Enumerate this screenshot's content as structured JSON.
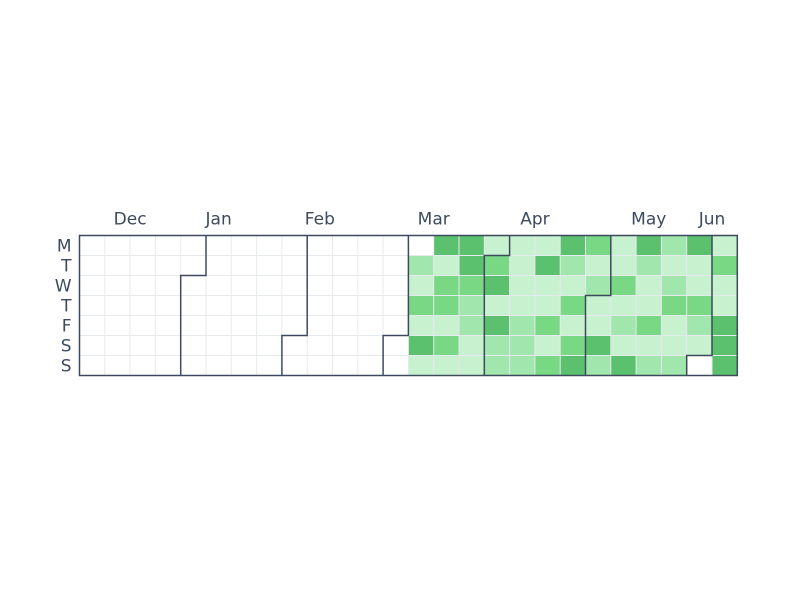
{
  "chart_data": {
    "type": "heatmap",
    "title": "",
    "xlabel": "",
    "ylabel": "",
    "day_labels": [
      "M",
      "T",
      "W",
      "T",
      "F",
      "S",
      "S"
    ],
    "months": [
      {
        "label": "Dec",
        "week_span": [
          0,
          4
        ]
      },
      {
        "label": "Jan",
        "week_span": [
          3,
          8
        ]
      },
      {
        "label": "Feb",
        "week_span": [
          7,
          12
        ]
      },
      {
        "label": "Mar",
        "week_span": [
          12,
          16
        ]
      },
      {
        "label": "Apr",
        "week_span": [
          16,
          20
        ]
      },
      {
        "label": "May",
        "week_span": [
          20,
          25
        ]
      },
      {
        "label": "Jun",
        "week_span": [
          24,
          26
        ]
      }
    ],
    "levels": [
      [
        0,
        0,
        0,
        0,
        0,
        0,
        0,
        0,
        0,
        0,
        0,
        0,
        0,
        0,
        4,
        4,
        1,
        1,
        1,
        4,
        3,
        1,
        4,
        2,
        4,
        1
      ],
      [
        0,
        0,
        0,
        0,
        0,
        0,
        0,
        0,
        0,
        0,
        0,
        0,
        0,
        2,
        1,
        4,
        3,
        1,
        4,
        2,
        1,
        1,
        2,
        1,
        1,
        3
      ],
      [
        0,
        0,
        0,
        0,
        0,
        0,
        0,
        0,
        0,
        0,
        0,
        0,
        0,
        1,
        3,
        3,
        4,
        1,
        1,
        1,
        2,
        3,
        1,
        2,
        1,
        1
      ],
      [
        0,
        0,
        0,
        0,
        0,
        0,
        0,
        0,
        0,
        0,
        0,
        0,
        0,
        3,
        3,
        2,
        1,
        1,
        1,
        3,
        1,
        1,
        1,
        3,
        3,
        1
      ],
      [
        0,
        0,
        0,
        0,
        0,
        0,
        0,
        0,
        0,
        0,
        0,
        0,
        0,
        1,
        1,
        2,
        4,
        2,
        3,
        1,
        1,
        2,
        3,
        1,
        2,
        4
      ],
      [
        0,
        0,
        0,
        0,
        0,
        0,
        0,
        0,
        0,
        0,
        0,
        0,
        0,
        4,
        3,
        1,
        2,
        2,
        1,
        3,
        4,
        1,
        1,
        1,
        1,
        4
      ],
      [
        0,
        0,
        0,
        0,
        0,
        0,
        0,
        0,
        0,
        0,
        0,
        0,
        0,
        1,
        1,
        1,
        2,
        2,
        3,
        4,
        2,
        4,
        2,
        2,
        0,
        4
      ]
    ],
    "level_colors": [
      "#ffffff",
      "#c7f1cf",
      "#a0e6ad",
      "#78d884",
      "#5cc16e",
      "#3a8a4a"
    ],
    "month_boundaries": [
      {
        "week": 4,
        "first_day": 2
      },
      {
        "week": 8,
        "first_day": 5
      },
      {
        "week": 12,
        "first_day": 5
      },
      {
        "week": 16,
        "first_day": 1
      },
      {
        "week": 20,
        "first_day": 3
      },
      {
        "week": 24,
        "first_day": 6
      }
    ],
    "grid": true,
    "legend": "none"
  }
}
